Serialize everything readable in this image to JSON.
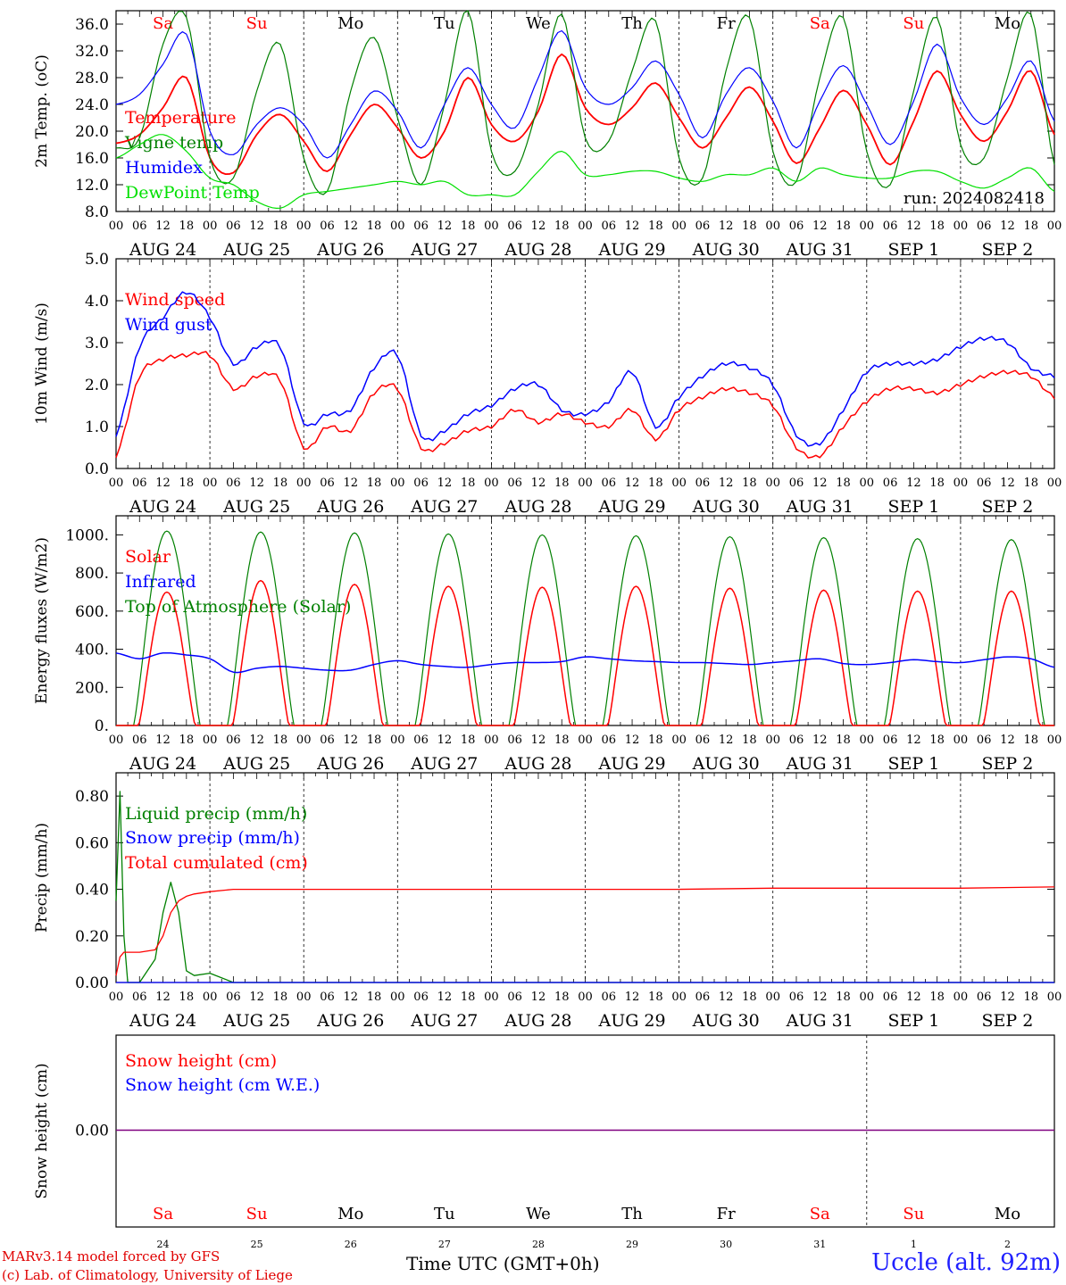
{
  "footer": {
    "model": "MARv3.14 model forced by GFS",
    "credit": "(c) Lab. of Climatology, University of Liege",
    "time_label": "Time UTC (GMT+0h)",
    "station": "Uccle (alt. 92m)"
  },
  "colors": {
    "red": "#ff0000",
    "blue": "#0000ff",
    "green": "#008000",
    "lightgreen": "#00e000",
    "purple": "#800080"
  },
  "days": {
    "dates": [
      "AUG 24",
      "AUG 25",
      "AUG 26",
      "AUG 27",
      "AUG 28",
      "AUG 29",
      "AUG 30",
      "AUG 31",
      "SEP  1",
      "SEP  2"
    ],
    "weekdays": [
      "Sa",
      "Su",
      "Mo",
      "Tu",
      "We",
      "Th",
      "Fr",
      "Sa",
      "Su",
      "Mo"
    ],
    "weekend": [
      true,
      true,
      false,
      false,
      false,
      false,
      false,
      true,
      true,
      false
    ],
    "numbers": [
      "24",
      "25",
      "26",
      "27",
      "28",
      "29",
      "30",
      "31",
      "1",
      "2"
    ],
    "hour_labels": [
      "00",
      "06",
      "12",
      "18"
    ]
  },
  "chart_data": [
    {
      "type": "line",
      "ylabel": "2m Temp. (oC)",
      "ylim": [
        8,
        38
      ],
      "yticks": [
        "8.0",
        "12.0",
        "16.0",
        "20.0",
        "24.0",
        "28.0",
        "32.0",
        "36.0"
      ],
      "run_label": "run: 2024082418",
      "x_hours": [
        0,
        6,
        12,
        18,
        24,
        30,
        36,
        42,
        48,
        54,
        60,
        66,
        72,
        78,
        84,
        90,
        96,
        102,
        108,
        114,
        120,
        126,
        132,
        138,
        144,
        150,
        156,
        162,
        168,
        174,
        180,
        186,
        192,
        198,
        204,
        210,
        216,
        222,
        228,
        234,
        240
      ],
      "series": [
        {
          "name": "Temperature",
          "color": "#ff0000",
          "values": [
            18.2,
            19.5,
            23.5,
            28,
            16,
            13.8,
            19.5,
            22.5,
            18.5,
            14,
            19.5,
            24,
            20.5,
            16,
            20,
            28,
            21,
            18.5,
            23,
            31.5,
            23.5,
            21,
            23.5,
            27.2,
            22,
            17.5,
            22,
            26.6,
            21.5,
            15.2,
            20.5,
            26.1,
            21,
            15,
            21.5,
            29,
            22.5,
            18.5,
            23,
            29,
            19.5
          ]
        },
        {
          "name": "Vigne temp",
          "color": "#008000",
          "values": [
            17.5,
            19,
            33,
            37,
            16,
            13,
            26,
            33,
            16,
            11,
            26,
            34,
            22,
            12,
            24,
            38,
            17,
            14,
            24,
            37.5,
            19,
            18.5,
            29,
            36.5,
            16,
            13,
            29,
            37,
            17,
            12.5,
            28,
            37,
            17,
            12,
            26,
            37,
            18,
            16,
            28,
            37.5,
            15
          ]
        },
        {
          "name": "Humidex",
          "color": "#0000ff",
          "values": [
            24,
            25.5,
            30,
            34.5,
            20,
            16.5,
            21,
            23.5,
            21,
            16,
            21,
            26,
            23,
            17.5,
            24,
            29.5,
            24,
            20.5,
            28,
            35,
            26.5,
            24,
            26.5,
            30.5,
            25.5,
            19,
            25.5,
            29.5,
            24.5,
            17.5,
            24.5,
            29.8,
            24,
            18,
            24.5,
            33,
            25,
            21,
            25,
            30.5,
            21.5
          ]
        },
        {
          "name": "DewPoint Temp",
          "color": "#00e000",
          "values": [
            16,
            18,
            19.5,
            17,
            13,
            12,
            9.5,
            8.5,
            10.5,
            11,
            11.5,
            12,
            12.5,
            12,
            12.5,
            10.5,
            10.5,
            10.5,
            14,
            17,
            13.5,
            13.5,
            14,
            14,
            13,
            12.5,
            13.5,
            13.5,
            14.5,
            12.5,
            14.5,
            13.5,
            13,
            13,
            14,
            14,
            12.5,
            11.5,
            13,
            14.5,
            11
          ]
        }
      ]
    },
    {
      "type": "line",
      "ylabel": "10m Wind (m/s)",
      "ylim": [
        0,
        5
      ],
      "yticks": [
        "0.0",
        "1.0",
        "2.0",
        "3.0",
        "4.0",
        "5.0"
      ],
      "x_hours": [
        0,
        6,
        12,
        18,
        24,
        30,
        36,
        42,
        48,
        54,
        60,
        66,
        72,
        78,
        84,
        90,
        96,
        102,
        108,
        114,
        120,
        126,
        132,
        138,
        144,
        150,
        156,
        162,
        168,
        174,
        180,
        186,
        192,
        198,
        204,
        210,
        216,
        222,
        228,
        234,
        240
      ],
      "series": [
        {
          "name": "Wind speed",
          "color": "#ff0000",
          "values": [
            0.3,
            2.2,
            2.6,
            2.7,
            2.7,
            1.9,
            2.2,
            2.1,
            0.5,
            1,
            0.9,
            1.8,
            1.9,
            0.5,
            0.6,
            0.9,
            1,
            1.4,
            1.1,
            1.3,
            1.1,
            1,
            1.4,
            0.7,
            1.4,
            1.7,
            1.9,
            1.8,
            1.5,
            0.5,
            0.3,
            1,
            1.6,
            1.9,
            1.9,
            1.8,
            2,
            2.2,
            2.3,
            2.2,
            1.7
          ]
        },
        {
          "name": "Wind gust",
          "color": "#0000ff",
          "values": [
            0.8,
            2.9,
            3.6,
            4.2,
            3.6,
            2.5,
            2.9,
            2.9,
            1.1,
            1.3,
            1.4,
            2.4,
            2.7,
            0.8,
            0.9,
            1.3,
            1.5,
            1.9,
            2,
            1.4,
            1.3,
            1.6,
            2.3,
            1,
            1.7,
            2.2,
            2.5,
            2.4,
            2,
            0.8,
            0.6,
            1.4,
            2.3,
            2.5,
            2.5,
            2.6,
            2.9,
            3.1,
            3,
            2.4,
            2.2
          ]
        }
      ]
    },
    {
      "type": "line",
      "ylabel": "Energy fluxes (W/m2)",
      "ylim": [
        0,
        1100
      ],
      "yticks": [
        "0.",
        "200.",
        "400.",
        "600.",
        "800.",
        "1000."
      ],
      "series": [
        {
          "name": "Solar",
          "color": "#ff0000",
          "daily_peaks": [
            700,
            760,
            740,
            730,
            725,
            730,
            720,
            710,
            705,
            705
          ]
        },
        {
          "name": "Infrared",
          "color": "#0000ff",
          "x_hours": [
            0,
            6,
            12,
            18,
            24,
            30,
            36,
            42,
            48,
            54,
            60,
            66,
            72,
            78,
            84,
            90,
            96,
            102,
            108,
            114,
            120,
            126,
            132,
            138,
            144,
            150,
            156,
            162,
            168,
            174,
            180,
            186,
            192,
            198,
            204,
            210,
            216,
            222,
            228,
            234,
            240
          ],
          "values": [
            380,
            350,
            380,
            370,
            350,
            280,
            300,
            310,
            300,
            290,
            290,
            320,
            340,
            320,
            310,
            305,
            320,
            330,
            330,
            335,
            360,
            350,
            340,
            335,
            330,
            330,
            325,
            320,
            330,
            340,
            350,
            325,
            320,
            330,
            345,
            335,
            330,
            345,
            360,
            350,
            305
          ]
        },
        {
          "name": "Top of Atmosphere (Solar)",
          "color": "#008000",
          "daily_peaks": [
            1020,
            1015,
            1010,
            1005,
            1000,
            995,
            990,
            985,
            980,
            975
          ]
        }
      ]
    },
    {
      "type": "line",
      "ylabel": "Precip (mm/h)",
      "ylim": [
        0,
        0.9
      ],
      "yticks": [
        "0.00",
        "0.20",
        "0.40",
        "0.60",
        "0.80"
      ],
      "x_hours": [
        0,
        1,
        2,
        3,
        6,
        10,
        12,
        14,
        16,
        18,
        20,
        24,
        30,
        36,
        48,
        84,
        96,
        120,
        144,
        168,
        192,
        216,
        240
      ],
      "series": [
        {
          "name": "Liquid precip (mm/h)",
          "color": "#008000",
          "values": [
            0.35,
            0.82,
            0.2,
            0,
            0,
            0.1,
            0.3,
            0.43,
            0.3,
            0.05,
            0.03,
            0.04,
            0,
            0,
            0,
            0,
            0,
            0,
            0,
            0,
            0,
            0,
            0
          ]
        },
        {
          "name": "Snow precip (mm/h)",
          "color": "#0000ff",
          "values": [
            0,
            0,
            0,
            0,
            0,
            0,
            0,
            0,
            0,
            0,
            0,
            0,
            0,
            0,
            0,
            0,
            0,
            0,
            0,
            0,
            0,
            0,
            0
          ]
        },
        {
          "name": "Total cumulated (cm)",
          "color": "#ff0000",
          "values": [
            0.03,
            0.11,
            0.13,
            0.13,
            0.13,
            0.14,
            0.2,
            0.3,
            0.35,
            0.37,
            0.38,
            0.39,
            0.4,
            0.4,
            0.4,
            0.4,
            0.4,
            0.4,
            0.4,
            0.405,
            0.405,
            0.405,
            0.41
          ]
        }
      ]
    },
    {
      "type": "line",
      "ylabel": "Snow height (cm)",
      "yticks": [
        "0.00"
      ],
      "series": [
        {
          "name": "Snow height (cm)",
          "color": "#ff0000",
          "values": [
            0,
            0
          ]
        },
        {
          "name": "Snow height (cm W.E.)",
          "color": "#0000ff",
          "values": [
            0,
            0
          ]
        }
      ]
    }
  ]
}
